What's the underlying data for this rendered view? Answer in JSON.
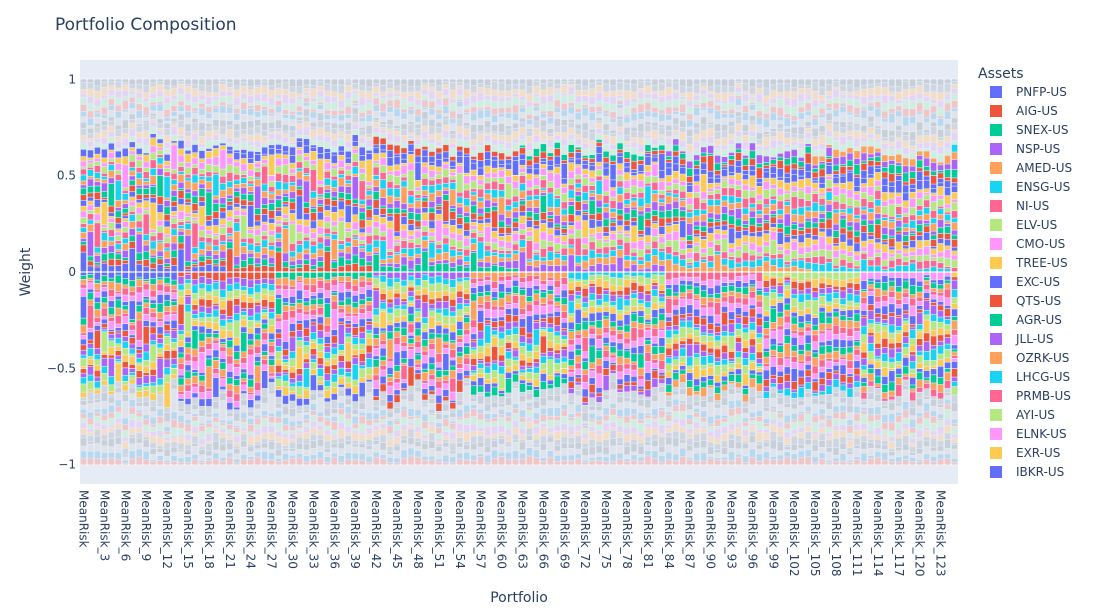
{
  "chart_data": {
    "type": "bar",
    "mode": "relative",
    "title": "Portfolio Composition",
    "xlabel": "Portfolio",
    "ylabel": "Weight",
    "ylim": [
      -1.1,
      1.1
    ],
    "yticks": [
      {
        "value": 1,
        "label": "1"
      },
      {
        "value": 0.5,
        "label": "0.5"
      },
      {
        "value": 0,
        "label": "0"
      },
      {
        "value": -0.5,
        "label": "−0.5"
      },
      {
        "value": -1,
        "label": "−1"
      }
    ],
    "grid": true,
    "legend_title": "Assets",
    "legend_position": "right",
    "x_tick_labels": [
      "MeanRisk",
      "MeanRisk_3",
      "MeanRisk_6",
      "MeanRisk_9",
      "MeanRisk_12",
      "MeanRisk_15",
      "MeanRisk_18",
      "MeanRisk_21",
      "MeanRisk_24",
      "MeanRisk_27",
      "MeanRisk_30",
      "MeanRisk_33",
      "MeanRisk_36",
      "MeanRisk_39",
      "MeanRisk_42",
      "MeanRisk_45",
      "MeanRisk_48",
      "MeanRisk_51",
      "MeanRisk_54",
      "MeanRisk_57",
      "MeanRisk_60",
      "MeanRisk_63",
      "MeanRisk_66",
      "MeanRisk_69",
      "MeanRisk_72",
      "MeanRisk_75",
      "MeanRisk_78",
      "MeanRisk_81",
      "MeanRisk_84",
      "MeanRisk_87",
      "MeanRisk_90",
      "MeanRisk_93",
      "MeanRisk_96",
      "MeanRisk_99",
      "MeanRisk_102",
      "MeanRisk_105",
      "MeanRisk_108",
      "MeanRisk_111",
      "MeanRisk_114",
      "MeanRisk_117",
      "MeanRisk_120",
      "MeanRisk_123"
    ],
    "tick_step": 3,
    "series": [
      {
        "name": "PNFP-US",
        "color": "#636efa"
      },
      {
        "name": "AIG-US",
        "color": "#EF553B"
      },
      {
        "name": "SNEX-US",
        "color": "#00cc96"
      },
      {
        "name": "NSP-US",
        "color": "#ab63fa"
      },
      {
        "name": "AMED-US",
        "color": "#FFA15A"
      },
      {
        "name": "ENSG-US",
        "color": "#19d3f3"
      },
      {
        "name": "NI-US",
        "color": "#FF6692"
      },
      {
        "name": "ELV-US",
        "color": "#B6E880"
      },
      {
        "name": "CMO-US",
        "color": "#FF97FF"
      },
      {
        "name": "TREE-US",
        "color": "#FECB52"
      },
      {
        "name": "EXC-US",
        "color": "#636efa"
      },
      {
        "name": "QTS-US",
        "color": "#EF553B"
      },
      {
        "name": "AGR-US",
        "color": "#00cc96"
      },
      {
        "name": "JLL-US",
        "color": "#ab63fa"
      },
      {
        "name": "OZRK-US",
        "color": "#FFA15A"
      },
      {
        "name": "LHCG-US",
        "color": "#19d3f3"
      },
      {
        "name": "PRMB-US",
        "color": "#FF6692"
      },
      {
        "name": "AYI-US",
        "color": "#B6E880"
      },
      {
        "name": "ELNK-US",
        "color": "#FF97FF"
      },
      {
        "name": "EXR-US",
        "color": "#FECB52"
      },
      {
        "name": "IBKR-US",
        "color": "#636efa"
      }
    ]
  }
}
